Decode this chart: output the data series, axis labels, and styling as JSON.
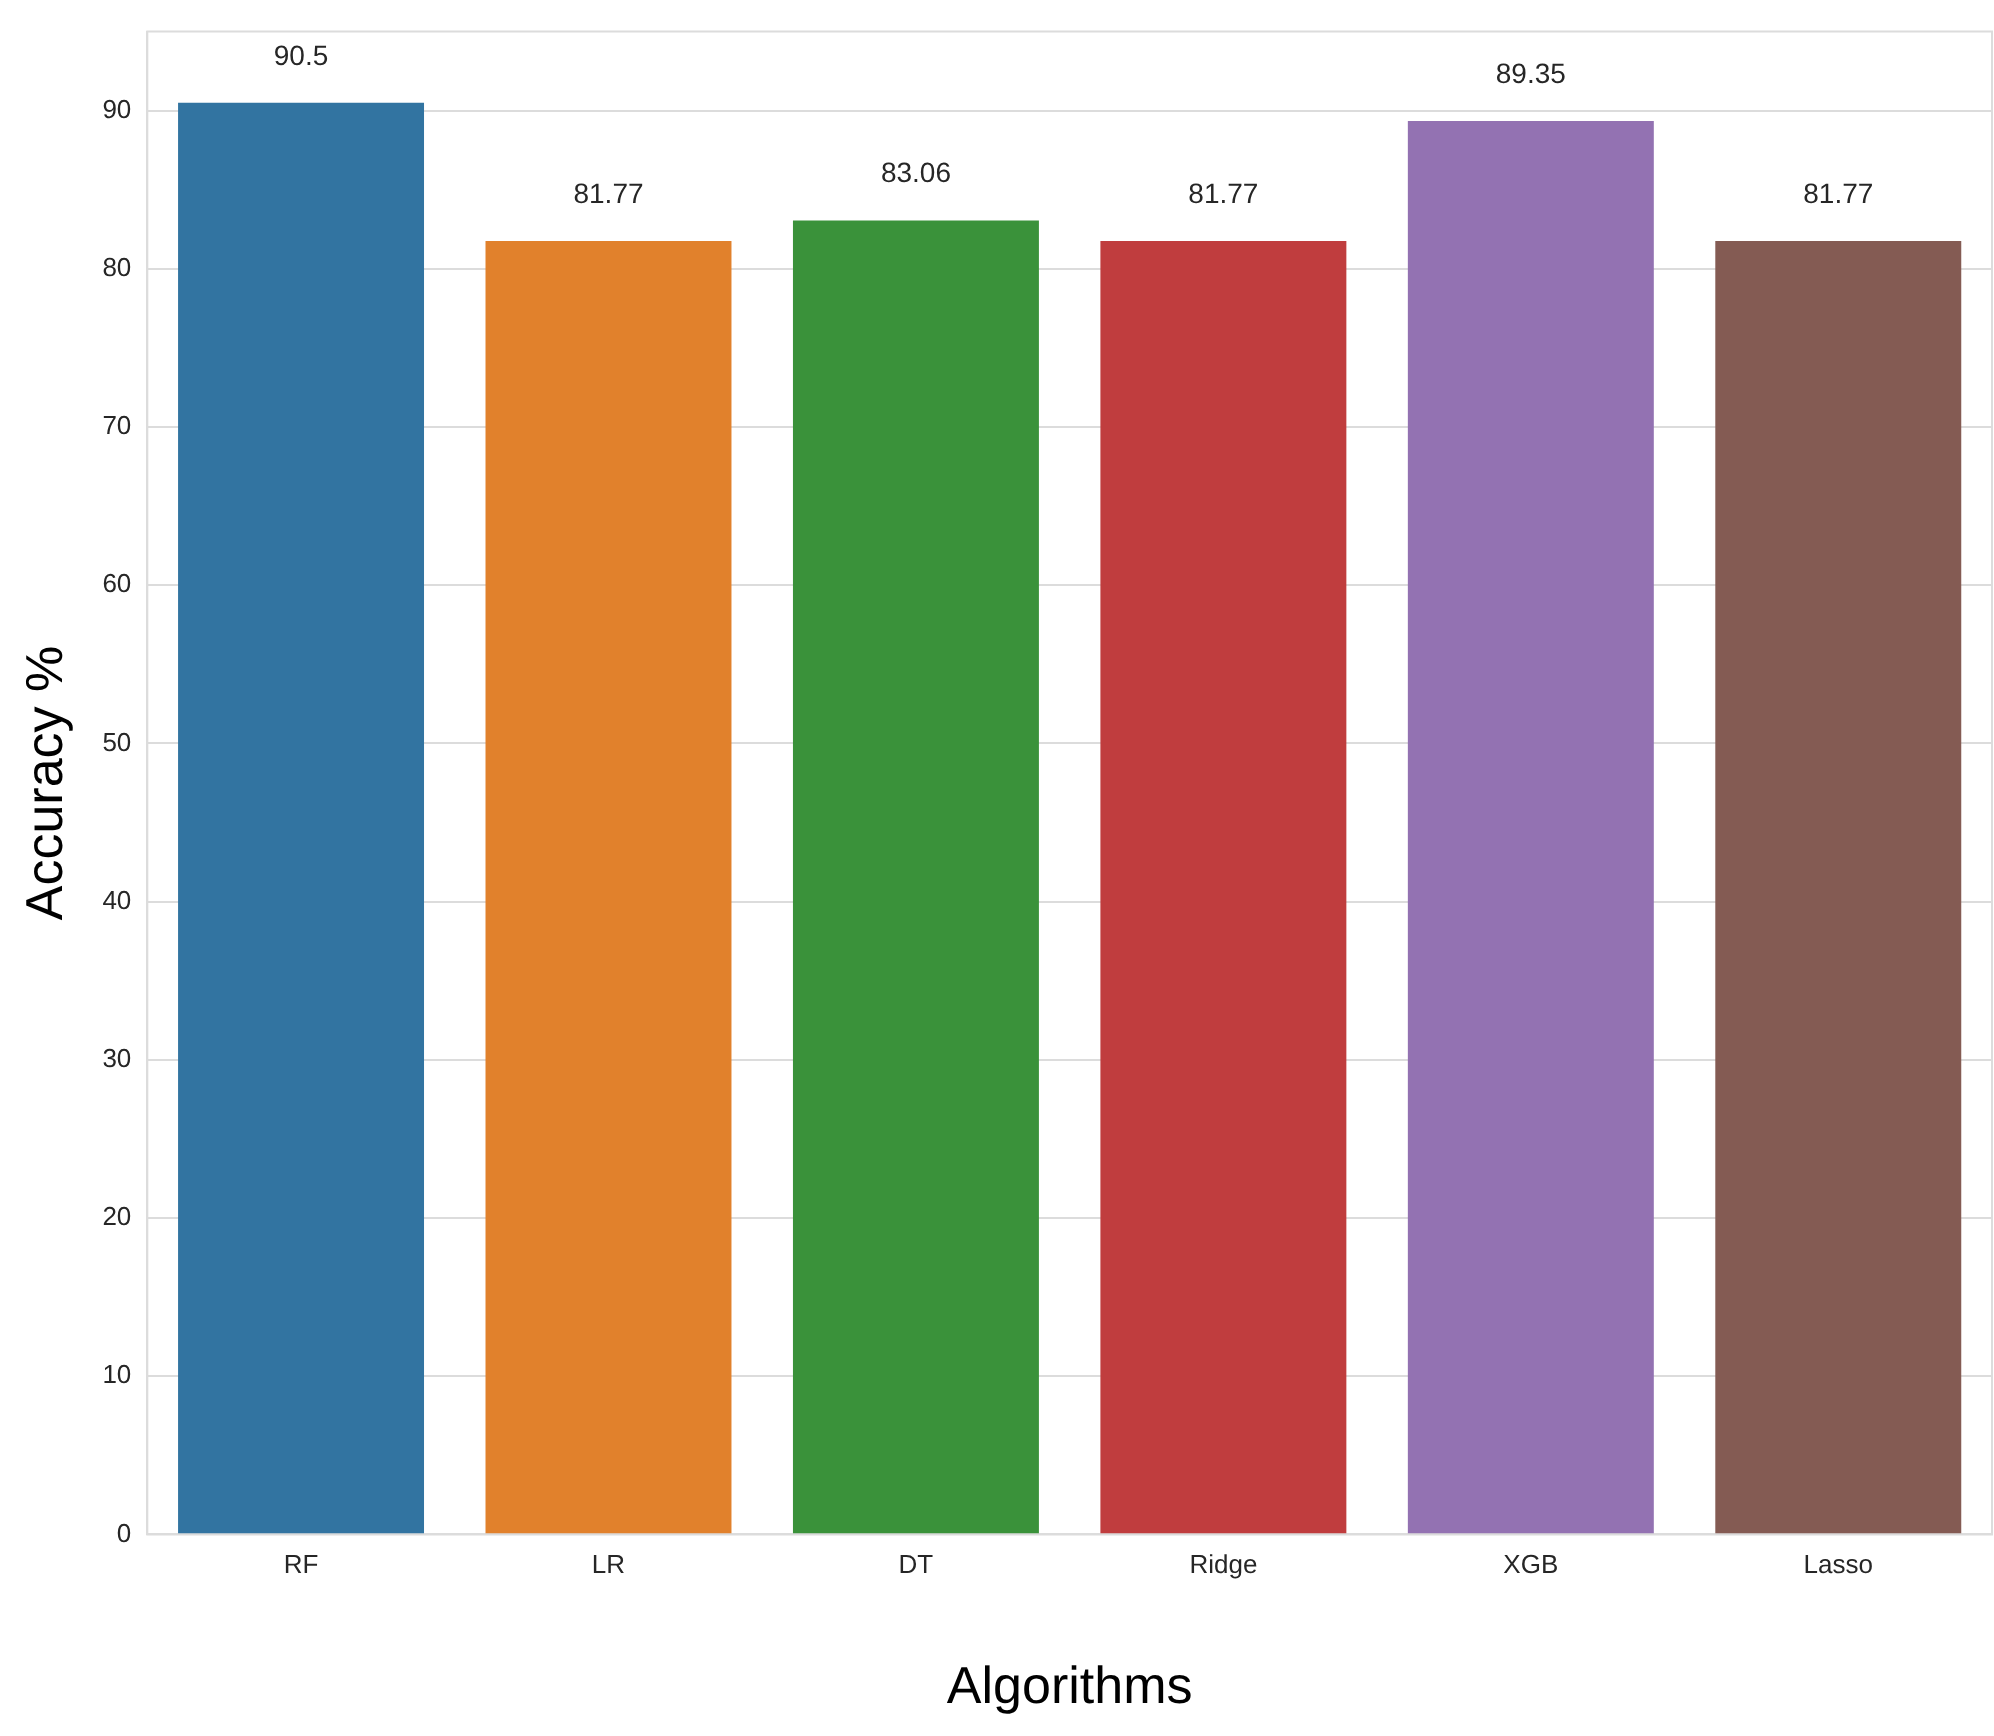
{
  "chart_data": {
    "type": "bar",
    "xlabel": "Algorithms",
    "ylabel": "Accuracy %",
    "categories": [
      "RF",
      "LR",
      "DT",
      "Ridge",
      "XGB",
      "Lasso"
    ],
    "values": [
      90.5,
      81.77,
      83.06,
      81.77,
      89.35,
      81.77
    ],
    "colors": [
      "#3274a1",
      "#e1812c",
      "#3a923a",
      "#c03d3e",
      "#9372b2",
      "#845b53"
    ],
    "ylim": [
      0,
      95
    ],
    "yticks": [
      0,
      10,
      20,
      30,
      40,
      50,
      60,
      70,
      80,
      90
    ],
    "grid": "y",
    "data_labels": true
  }
}
